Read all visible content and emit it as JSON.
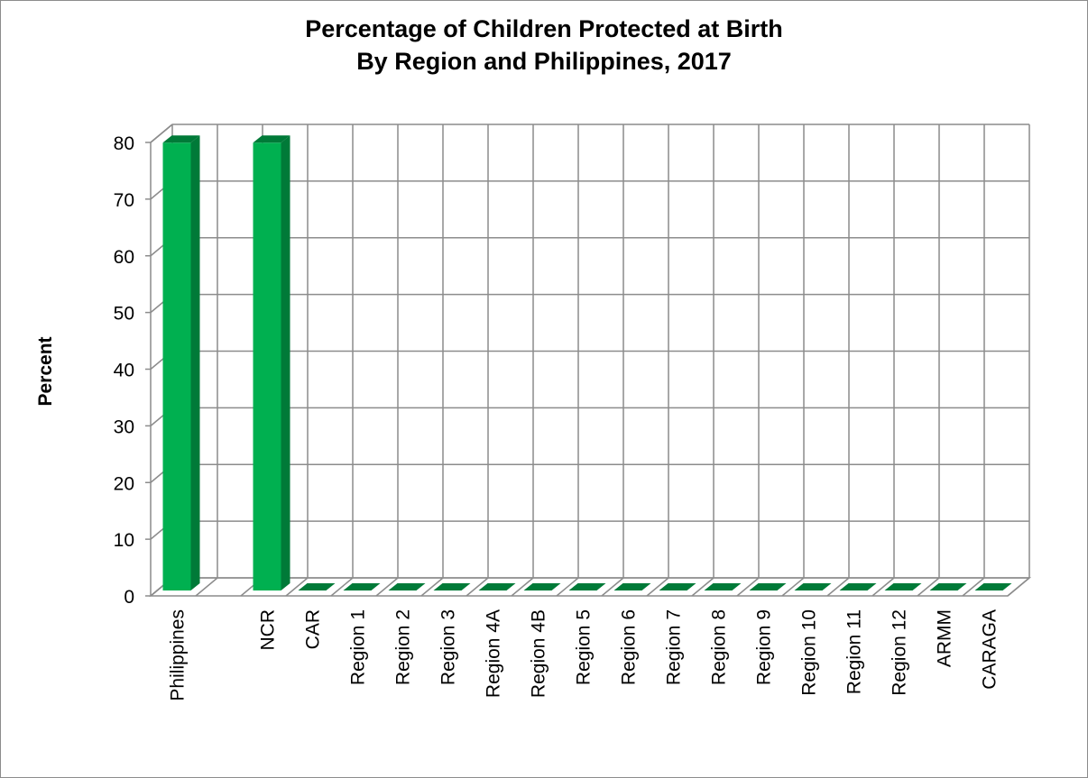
{
  "chart_data": {
    "type": "bar",
    "title_line1": "Percentage of Children Protected at Birth",
    "title_line2": "By Region and Philippines, 2017",
    "xlabel": "",
    "ylabel": "Percent",
    "ylim": [
      0,
      80
    ],
    "yticks": [
      0,
      10,
      20,
      30,
      40,
      50,
      60,
      70,
      80
    ],
    "grid": true,
    "legend": "none",
    "bar_color": "#00b050",
    "bar_dark_color": "#007a38",
    "gridline_color": "#8c8c8c",
    "categories": [
      "Philippines",
      "",
      "NCR",
      "CAR",
      "Region 1",
      "Region 2",
      "Region 3",
      "Region 4A",
      "Region 4B",
      "Region 5",
      "Region 6",
      "Region 7",
      "Region 8",
      "Region 9",
      "Region 10",
      "Region 11",
      "Region 12",
      "ARMM",
      "CARAGA"
    ],
    "values": [
      79,
      null,
      79,
      0,
      0,
      0,
      0,
      0,
      0,
      0,
      0,
      0,
      0,
      0,
      0,
      0,
      0,
      0,
      0
    ]
  }
}
